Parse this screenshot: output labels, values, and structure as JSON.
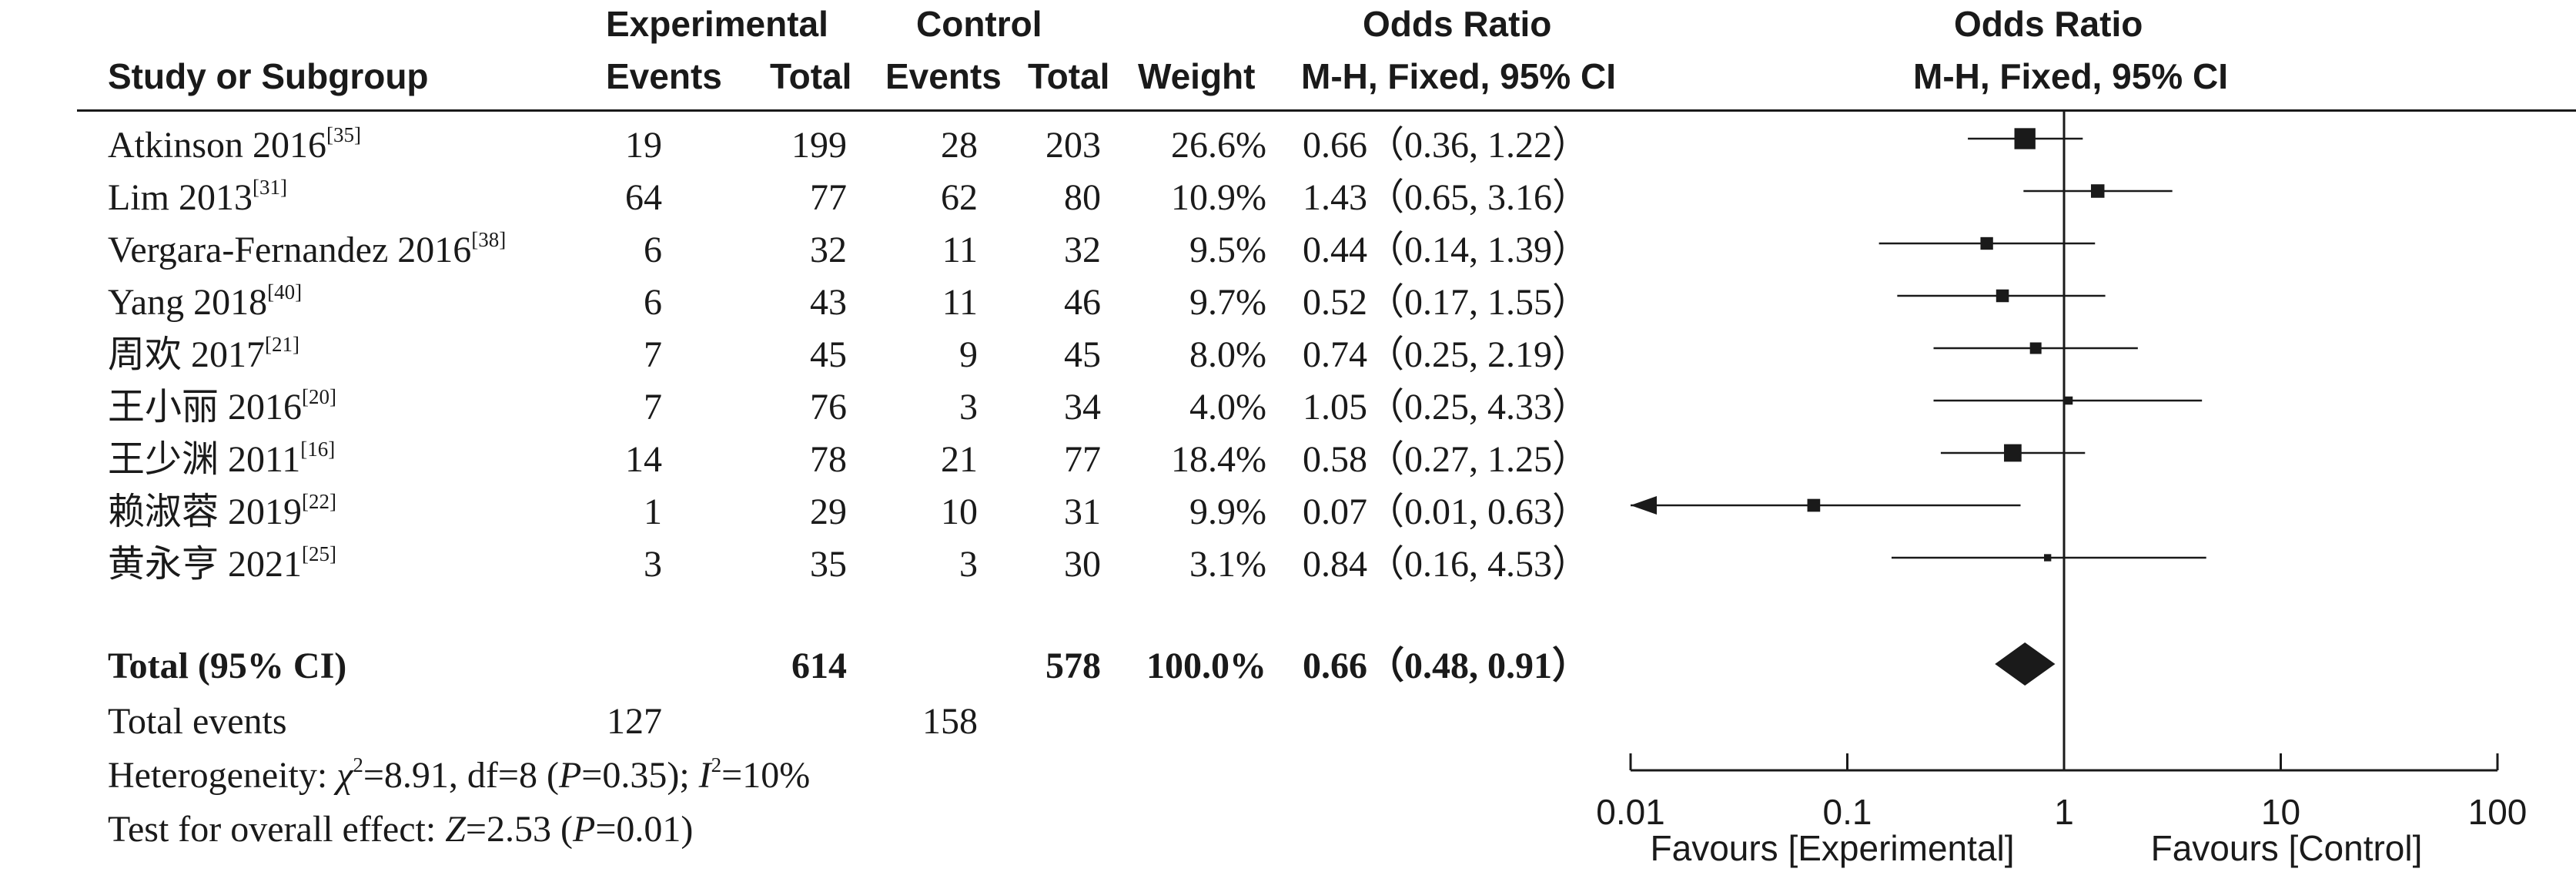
{
  "headers": {
    "study": "Study or Subgroup",
    "experimental_group": "Experimental",
    "control_group": "Control",
    "events": "Events",
    "total": "Total",
    "weight": "Weight",
    "odds_ratio": "Odds Ratio",
    "method": "M-H, Fixed, 95% CI"
  },
  "studies": [
    {
      "name": "Atkinson 2016",
      "ref": "[35]",
      "exp_events": "19",
      "exp_total": "199",
      "ctl_events": "28",
      "ctl_total": "203",
      "weight": "26.6%",
      "or_text": "0.66（0.36, 1.22）"
    },
    {
      "name": "Lim 2013",
      "ref": "[31]",
      "exp_events": "64",
      "exp_total": "77",
      "ctl_events": "62",
      "ctl_total": "80",
      "weight": "10.9%",
      "or_text": "1.43（0.65, 3.16）"
    },
    {
      "name": "Vergara-Fernandez 2016",
      "ref": "[38]",
      "exp_events": "6",
      "exp_total": "32",
      "ctl_events": "11",
      "ctl_total": "32",
      "weight": "9.5%",
      "or_text": "0.44（0.14, 1.39）"
    },
    {
      "name": "Yang 2018",
      "ref": "[40]",
      "exp_events": "6",
      "exp_total": "43",
      "ctl_events": "11",
      "ctl_total": "46",
      "weight": "9.7%",
      "or_text": "0.52（0.17, 1.55）"
    },
    {
      "name": "周欢 2017",
      "ref": "[21]",
      "exp_events": "7",
      "exp_total": "45",
      "ctl_events": "9",
      "ctl_total": "45",
      "weight": "8.0%",
      "or_text": "0.74（0.25, 2.19）"
    },
    {
      "name": "王小丽 2016",
      "ref": "[20]",
      "exp_events": "7",
      "exp_total": "76",
      "ctl_events": "3",
      "ctl_total": "34",
      "weight": "4.0%",
      "or_text": "1.05（0.25, 4.33）"
    },
    {
      "name": "王少渊 2011",
      "ref": "[16]",
      "exp_events": "14",
      "exp_total": "78",
      "ctl_events": "21",
      "ctl_total": "77",
      "weight": "18.4%",
      "or_text": "0.58（0.27, 1.25）"
    },
    {
      "name": "赖淑蓉 2019",
      "ref": "[22]",
      "exp_events": "1",
      "exp_total": "29",
      "ctl_events": "10",
      "ctl_total": "31",
      "weight": "9.9%",
      "or_text": "0.07（0.01, 0.63）"
    },
    {
      "name": "黄永亨 2021",
      "ref": "[25]",
      "exp_events": "3",
      "exp_total": "35",
      "ctl_events": "3",
      "ctl_total": "30",
      "weight": "3.1%",
      "or_text": "0.84（0.16, 4.53）"
    }
  ],
  "total": {
    "label": "Total (95% CI)",
    "exp_total": "614",
    "ctl_total": "578",
    "weight": "100.0%",
    "or_text": "0.66（0.48, 0.91）"
  },
  "total_events": {
    "label": "Total events",
    "exp": "127",
    "ctl": "158"
  },
  "stats": {
    "heterogeneity_label": "Heterogeneity: ",
    "chi_symbol": "χ",
    "chi_sup": "2",
    "chi_value": "=8.91, df=8 (",
    "p_symbol": "P",
    "p_value_het": "=0.35); ",
    "i_symbol": "I",
    "i_sup": "2",
    "i_value": "=10%",
    "overall_label": "Test for overall effect: ",
    "z_symbol": "Z",
    "z_value": "=2.53 (",
    "p_value_overall": "=0.01)"
  },
  "chart_data": {
    "type": "forest",
    "scale": "log",
    "xlim": [
      0.01,
      100
    ],
    "ticks": [
      0.01,
      0.1,
      1,
      10,
      100
    ],
    "tick_labels": [
      "0.01",
      "0.1",
      "1",
      "10",
      "100"
    ],
    "reference_line": 1,
    "favours_left": "Favours [Experimental]",
    "favours_right": "Favours [Control]",
    "studies": [
      {
        "name": "Atkinson 2016",
        "or": 0.66,
        "lo": 0.36,
        "hi": 1.22,
        "weight": 26.6
      },
      {
        "name": "Lim 2013",
        "or": 1.43,
        "lo": 0.65,
        "hi": 3.16,
        "weight": 10.9
      },
      {
        "name": "Vergara-Fernandez 2016",
        "or": 0.44,
        "lo": 0.14,
        "hi": 1.39,
        "weight": 9.5
      },
      {
        "name": "Yang 2018",
        "or": 0.52,
        "lo": 0.17,
        "hi": 1.55,
        "weight": 9.7
      },
      {
        "name": "周欢 2017",
        "or": 0.74,
        "lo": 0.25,
        "hi": 2.19,
        "weight": 8.0
      },
      {
        "name": "王小丽 2016",
        "or": 1.05,
        "lo": 0.25,
        "hi": 4.33,
        "weight": 4.0
      },
      {
        "name": "王少渊 2011",
        "or": 0.58,
        "lo": 0.27,
        "hi": 1.25,
        "weight": 18.4
      },
      {
        "name": "赖淑蓉 2019",
        "or": 0.07,
        "lo": 0.01,
        "hi": 0.63,
        "weight": 9.9
      },
      {
        "name": "黄永亨 2021",
        "or": 0.84,
        "lo": 0.16,
        "hi": 4.53,
        "weight": 3.1
      }
    ],
    "pooled": {
      "or": 0.66,
      "lo": 0.48,
      "hi": 0.91
    }
  }
}
